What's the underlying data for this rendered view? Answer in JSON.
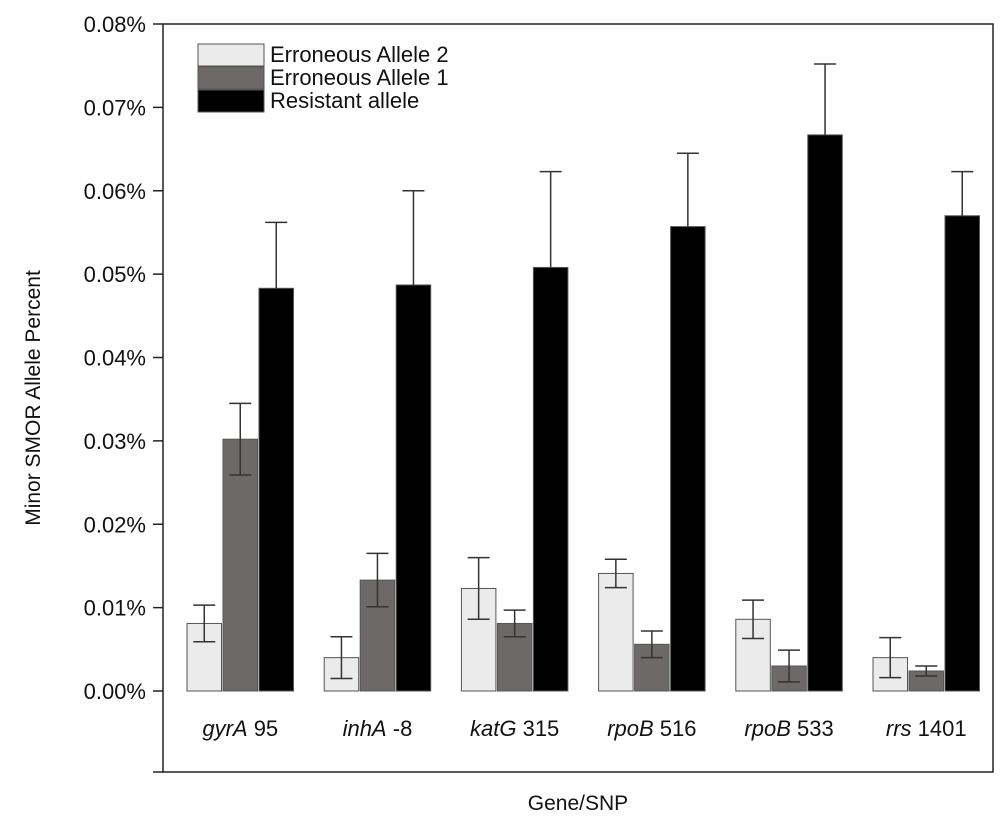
{
  "chart_data": {
    "type": "bar",
    "title": "",
    "xlabel": "Gene/SNP",
    "ylabel": "Minor SMOR Allele Percent",
    "ylim": [
      0,
      0.08
    ],
    "y_tick_values": [
      0,
      0.01,
      0.02,
      0.03,
      0.04,
      0.05,
      0.06,
      0.07,
      0.08
    ],
    "y_tick_labels": [
      "0.00%",
      "0.01%",
      "0.02%",
      "0.03%",
      "0.04%",
      "0.05%",
      "0.06%",
      "0.07%",
      "0.08%"
    ],
    "categories": [
      {
        "gene": "gyrA",
        "pos": "95"
      },
      {
        "gene": "inhA",
        "pos": "-8"
      },
      {
        "gene": "katG",
        "pos": "315"
      },
      {
        "gene": "rpoB",
        "pos": "516"
      },
      {
        "gene": "rpoB",
        "pos": "533"
      },
      {
        "gene": "rrs",
        "pos": "1401"
      }
    ],
    "series": [
      {
        "name": "Erroneous Allele 2",
        "color": "#ecebeb",
        "values": [
          0.0081,
          0.004,
          0.0123,
          0.0141,
          0.0086,
          0.004
        ],
        "errors": [
          0.0022,
          0.0025,
          0.0037,
          0.0017,
          0.0023,
          0.0024
        ]
      },
      {
        "name": "Erroneous Allele 1",
        "color": "#6e6969",
        "values": [
          0.0302,
          0.0133,
          0.0081,
          0.0056,
          0.003,
          0.0024
        ],
        "errors": [
          0.0043,
          0.0032,
          0.0016,
          0.0016,
          0.0019,
          0.0006
        ]
      },
      {
        "name": "Resistant allele",
        "color": "#000000",
        "values": [
          0.0483,
          0.0487,
          0.0508,
          0.0557,
          0.0667,
          0.057
        ],
        "errors": [
          0.0079,
          0.0113,
          0.0115,
          0.0088,
          0.0085,
          0.0053
        ]
      }
    ],
    "legend": {
      "placement": "top-left",
      "order": [
        0,
        1,
        2
      ]
    },
    "grid": false
  }
}
